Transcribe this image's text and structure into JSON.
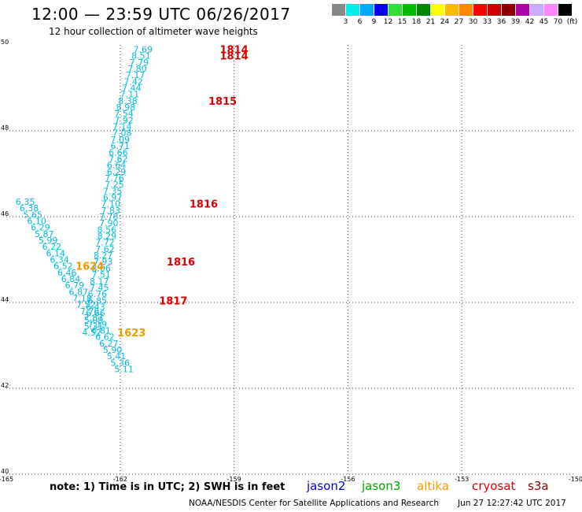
{
  "title": "12:00 — 23:59 UTC 06/26/2017",
  "subtitle": "12 hour collection of altimeter wave heights",
  "scale": {
    "colors": [
      "#888888",
      "#00eeee",
      "#00aaff",
      "#0000ee",
      "#33dd33",
      "#00bb00",
      "#008800",
      "#ffff00",
      "#ffbb00",
      "#ff8800",
      "#ff0000",
      "#cc0000",
      "#880000",
      "#aa00aa",
      "#ccaaff",
      "#ff88ff",
      "#000000"
    ],
    "labels": [
      "3",
      "6",
      "9",
      "12",
      "15",
      "18",
      "21",
      "24",
      "27",
      "30",
      "33",
      "36",
      "39",
      "42",
      "45",
      "70",
      "(ft)"
    ]
  },
  "chart_data": {
    "type": "scatter",
    "xlim": [
      -165,
      -150
    ],
    "ylim": [
      40,
      50
    ],
    "x_ticks": [
      "-165",
      "-162",
      "-159",
      "-156",
      "-153",
      "-150"
    ],
    "y_ticks": [
      "40",
      "42",
      "44",
      "46",
      "48",
      "50"
    ],
    "grid": true,
    "series": [
      {
        "name": "jason3",
        "color": "#00bbdd",
        "points": [
          {
            "x": -161.4,
            "y": 49.9,
            "v": "7.69"
          },
          {
            "x": -161.45,
            "y": 49.75,
            "v": "8.51"
          },
          {
            "x": -161.5,
            "y": 49.6,
            "v": "7.79"
          },
          {
            "x": -161.55,
            "y": 49.45,
            "v": "7.80"
          },
          {
            "x": -161.6,
            "y": 49.3,
            "v": "7.17"
          },
          {
            "x": -161.65,
            "y": 49.15,
            "v": "7.42"
          },
          {
            "x": -161.7,
            "y": 49.0,
            "v": "7.44"
          },
          {
            "x": -161.75,
            "y": 48.85,
            "v": "7.11"
          },
          {
            "x": -161.8,
            "y": 48.7,
            "v": "8.38"
          },
          {
            "x": -161.85,
            "y": 48.55,
            "v": "8.98"
          },
          {
            "x": -161.9,
            "y": 48.4,
            "v": "7.54"
          },
          {
            "x": -161.9,
            "y": 48.25,
            "v": "7.92"
          },
          {
            "x": -161.95,
            "y": 48.1,
            "v": "7.14"
          },
          {
            "x": -161.95,
            "y": 47.95,
            "v": "7.08"
          },
          {
            "x": -162.0,
            "y": 47.8,
            "v": "7.09"
          },
          {
            "x": -162.0,
            "y": 47.65,
            "v": "6.71"
          },
          {
            "x": -162.05,
            "y": 47.5,
            "v": "6.66"
          },
          {
            "x": -162.05,
            "y": 47.35,
            "v": "7.62"
          },
          {
            "x": -162.1,
            "y": 47.2,
            "v": "6.64"
          },
          {
            "x": -162.1,
            "y": 47.05,
            "v": "6.29"
          },
          {
            "x": -162.15,
            "y": 46.9,
            "v": "7.76"
          },
          {
            "x": -162.15,
            "y": 46.75,
            "v": "7.25"
          },
          {
            "x": -162.2,
            "y": 46.6,
            "v": "7.35"
          },
          {
            "x": -162.2,
            "y": 46.45,
            "v": "6.97"
          },
          {
            "x": -162.25,
            "y": 46.3,
            "v": "7.10"
          },
          {
            "x": -162.25,
            "y": 46.15,
            "v": "7.83"
          },
          {
            "x": -162.3,
            "y": 46.0,
            "v": "7.78"
          },
          {
            "x": -162.3,
            "y": 45.85,
            "v": "7.90"
          },
          {
            "x": -162.35,
            "y": 45.7,
            "v": "8.56"
          },
          {
            "x": -162.35,
            "y": 45.55,
            "v": "8.29"
          },
          {
            "x": -162.4,
            "y": 45.4,
            "v": "7.72"
          },
          {
            "x": -162.4,
            "y": 45.25,
            "v": "7.62"
          },
          {
            "x": -162.45,
            "y": 45.1,
            "v": "8.27"
          },
          {
            "x": -162.45,
            "y": 44.95,
            "v": "7.93"
          },
          {
            "x": -162.5,
            "y": 44.8,
            "v": "8.06"
          },
          {
            "x": -162.5,
            "y": 44.65,
            "v": "7.51"
          },
          {
            "x": -162.55,
            "y": 44.5,
            "v": "8.17"
          },
          {
            "x": -162.55,
            "y": 44.35,
            "v": "7.45"
          },
          {
            "x": -162.6,
            "y": 44.2,
            "v": "6.76"
          },
          {
            "x": -162.6,
            "y": 44.05,
            "v": "6.85"
          },
          {
            "x": -162.65,
            "y": 43.9,
            "v": "6.43"
          },
          {
            "x": -162.65,
            "y": 43.75,
            "v": "6.66"
          },
          {
            "x": -162.7,
            "y": 43.6,
            "v": "5.09"
          },
          {
            "x": -162.7,
            "y": 43.45,
            "v": "5.31"
          },
          {
            "x": -162.75,
            "y": 43.3,
            "v": "4.52"
          }
        ]
      },
      {
        "name": "jason3",
        "color": "#00bbdd",
        "points": [
          {
            "x": -164.5,
            "y": 46.35,
            "v": "6.35"
          },
          {
            "x": -164.4,
            "y": 46.2,
            "v": "6.38"
          },
          {
            "x": -164.3,
            "y": 46.05,
            "v": "5.65"
          },
          {
            "x": -164.2,
            "y": 45.9,
            "v": "6.10"
          },
          {
            "x": -164.1,
            "y": 45.75,
            "v": "6.29"
          },
          {
            "x": -164.0,
            "y": 45.6,
            "v": "5.87"
          },
          {
            "x": -163.9,
            "y": 45.45,
            "v": "5.99"
          },
          {
            "x": -163.8,
            "y": 45.3,
            "v": "6.22"
          },
          {
            "x": -163.7,
            "y": 45.15,
            "v": "6.14"
          },
          {
            "x": -163.6,
            "y": 45.0,
            "v": "6.34"
          },
          {
            "x": -163.5,
            "y": 44.85,
            "v": "6.52"
          },
          {
            "x": -163.4,
            "y": 44.7,
            "v": "6.46"
          },
          {
            "x": -163.3,
            "y": 44.55,
            "v": "6.84"
          },
          {
            "x": -163.2,
            "y": 44.4,
            "v": "6.79"
          },
          {
            "x": -163.1,
            "y": 44.25,
            "v": "6.87"
          },
          {
            "x": -163.0,
            "y": 44.1,
            "v": "7.18"
          },
          {
            "x": -162.9,
            "y": 43.95,
            "v": "7.52"
          },
          {
            "x": -162.8,
            "y": 43.8,
            "v": "7.76"
          },
          {
            "x": -162.7,
            "y": 43.65,
            "v": "7.87"
          },
          {
            "x": -162.6,
            "y": 43.5,
            "v": "7.19"
          },
          {
            "x": -162.5,
            "y": 43.35,
            "v": "6.81"
          },
          {
            "x": -162.4,
            "y": 43.2,
            "v": "6.62"
          },
          {
            "x": -162.3,
            "y": 43.05,
            "v": "6.27"
          },
          {
            "x": -162.2,
            "y": 42.9,
            "v": "5.90"
          },
          {
            "x": -162.1,
            "y": 42.75,
            "v": "5.41"
          },
          {
            "x": -162.0,
            "y": 42.6,
            "v": "5.36"
          },
          {
            "x": -161.9,
            "y": 42.45,
            "v": "5.11"
          }
        ]
      }
    ],
    "time_labels": [
      {
        "x": -159.0,
        "y": 49.9,
        "t": "1814",
        "color": "#dd0000"
      },
      {
        "x": -159.0,
        "y": 49.75,
        "t": "1814",
        "color": "#dd0000"
      },
      {
        "x": -159.3,
        "y": 48.7,
        "t": "1815",
        "color": "#dd0000"
      },
      {
        "x": -159.8,
        "y": 46.3,
        "t": "1816",
        "color": "#dd0000"
      },
      {
        "x": -162.8,
        "y": 44.85,
        "t": "1624",
        "color": "#ee9900"
      },
      {
        "x": -160.4,
        "y": 44.95,
        "t": "1816",
        "color": "#dd0000"
      },
      {
        "x": -160.6,
        "y": 44.05,
        "t": "1817",
        "color": "#dd0000"
      },
      {
        "x": -161.7,
        "y": 43.3,
        "t": "1623",
        "color": "#ee9900"
      }
    ]
  },
  "note": "note: 1) Time is in UTC; 2) SWH is in feet",
  "satellites": [
    {
      "name": "jason2",
      "color": "#0000dd"
    },
    {
      "name": "jason3",
      "color": "#00aa00"
    },
    {
      "name": "altika",
      "color": "#ff9900"
    },
    {
      "name": "cryosat",
      "color": "#dd0000"
    },
    {
      "name": "s3a",
      "color": "#880000"
    }
  ],
  "credit": "NOAA/NESDIS Center for Satellite Applications and Research",
  "timestamp": "Jun 27 12:27:42 UTC 2017"
}
